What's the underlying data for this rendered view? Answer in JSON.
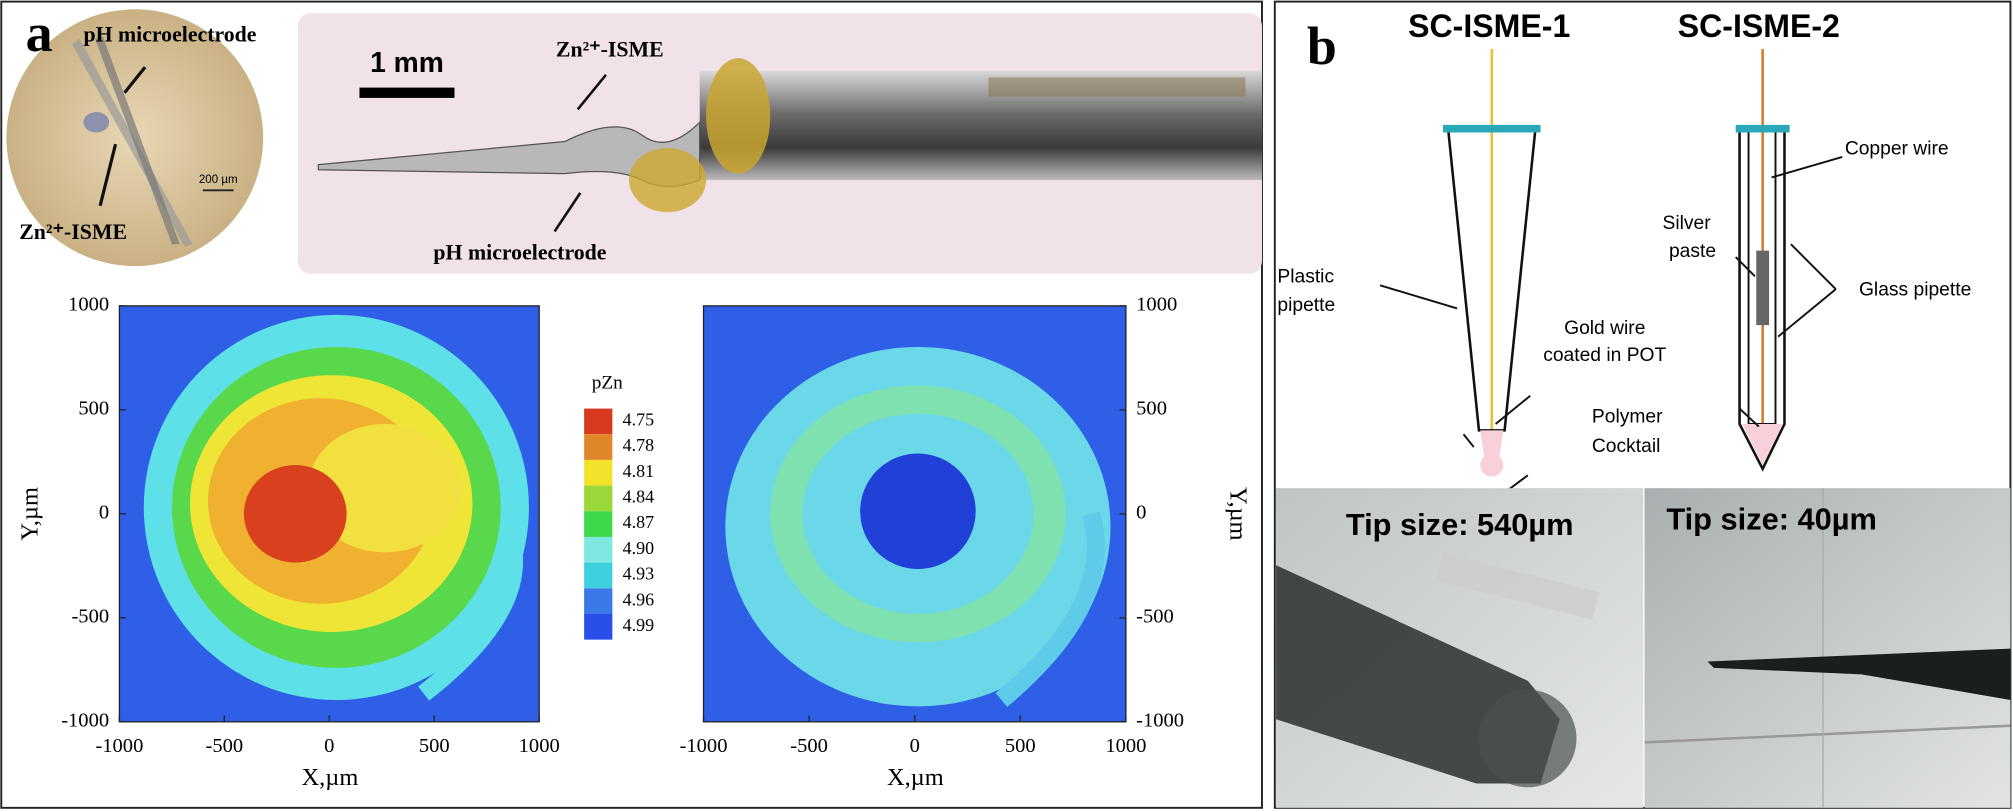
{
  "panel_a": {
    "label": "a",
    "inset": {
      "ph_label": "pH microelectrode",
      "zn_label": "Zn²⁺-ISME",
      "scale": "200 µm"
    },
    "photo": {
      "scale": "1 mm",
      "zn_label": "Zn²⁺-ISME",
      "ph_label": "pH microelectrode"
    },
    "maps": {
      "xticks": [
        -1000,
        -500,
        0,
        500,
        1000
      ],
      "yticks": [
        -1000,
        -500,
        0,
        500,
        1000
      ],
      "xlim": [
        -1000,
        1000
      ],
      "ylim": [
        -1000,
        1000
      ],
      "xlabel": "X,µm",
      "ylabel": "Y,µm"
    },
    "colorbar": {
      "title": "pZn",
      "levels": [
        4.75,
        4.78,
        4.81,
        4.84,
        4.87,
        {
          "value": 4.9,
          "label": "4.90"
        },
        4.93,
        4.96,
        4.99
      ],
      "colors": [
        "#d83a1f",
        "#e0862a",
        "#f2e32a",
        "#9ad83a",
        "#3ed84a",
        "#7ee8e0",
        "#3fd0e0",
        "#3a7ae8",
        "#2a4fe8"
      ]
    }
  },
  "panel_b": {
    "label": "b",
    "titles": [
      "SC-ISME-1",
      "SC-ISME-2"
    ],
    "labels": {
      "plastic_pipette": [
        "Plastic",
        "pipette"
      ],
      "gold_wire": [
        "Gold wire",
        "coated in POT"
      ],
      "polymer": [
        "Polymer",
        "Cocktail"
      ],
      "copper": "Copper wire",
      "silver": [
        "Silver",
        "paste"
      ],
      "glass": "Glass pipette"
    },
    "photos": [
      "Tip size: 540µm",
      "Tip size: 40µm"
    ]
  }
}
